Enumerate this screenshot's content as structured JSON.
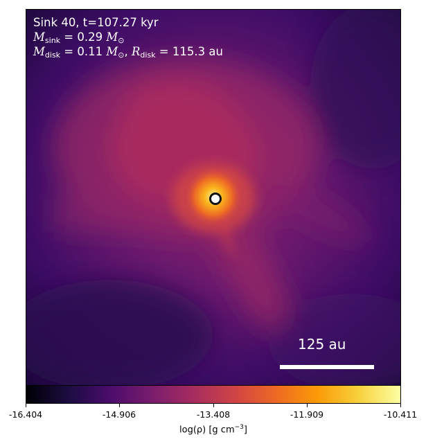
{
  "annotation": {
    "title": "Sink 40, t=107.27 kyr",
    "sink_mass_symbol": "M",
    "sink_mass_subscript": "sink",
    "sink_mass_value": " = 0.29 ",
    "sink_mass_unit": "M",
    "sink_mass_unit_subscript": "⊙",
    "disk_mass_symbol": "M",
    "disk_mass_subscript": "disk",
    "disk_mass_value": " = 0.11 ",
    "disk_mass_unit": "M",
    "disk_mass_unit_subscript": "⊙",
    "separator": ", ",
    "disk_radius_symbol": "R",
    "disk_radius_subscript": "disk",
    "disk_radius_value": " = 115.3 au"
  },
  "scalebar": {
    "label": "125 au"
  },
  "colorbar": {
    "colormap": "inferno",
    "min": -16.404,
    "max": -10.411,
    "tick_labels": [
      "-16.404",
      "-14.906",
      "-13.408",
      "-11.909",
      "-10.411"
    ],
    "label_main": "log(ρ) [g cm",
    "label_sup": "−3",
    "label_end": "]"
  },
  "colors": {
    "colormap_stops": [
      "#000004",
      "#1b0c41",
      "#4a0c6b",
      "#781c6d",
      "#a52c60",
      "#cf4446",
      "#ed6925",
      "#fb9b06",
      "#f7d13d",
      "#fcffa4"
    ],
    "sink_marker_fill": "#ffffff",
    "sink_marker_ring": "#111111"
  }
}
